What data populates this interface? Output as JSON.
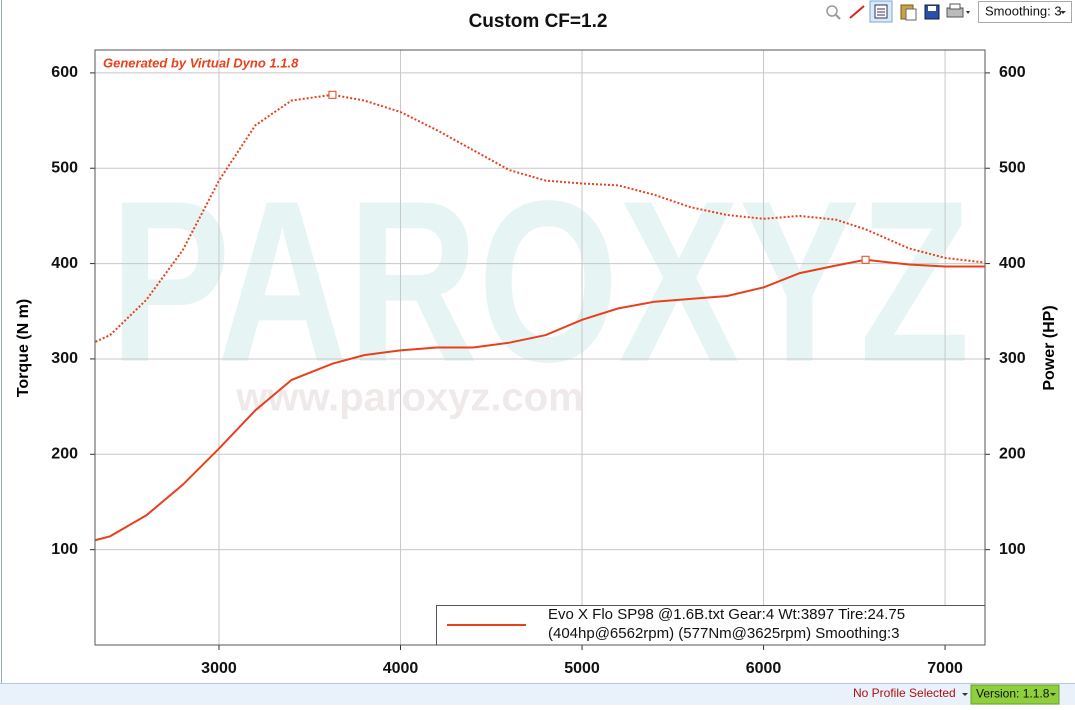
{
  "toolbar": {
    "smoothing": "Smoothing: 3"
  },
  "status_bar": {
    "profile": "No Profile Selected",
    "version": "Version: 1.1.8"
  },
  "chart_data": {
    "type": "line",
    "title": "Custom CF=1.2",
    "watermark": "Generated by Virtual Dyno 1.1.8",
    "background_texts": [
      "PAROXYZ",
      "www.paroxyz.com"
    ],
    "y_label": "Torque (N m)",
    "y2_label": "Power (HP)",
    "x": [
      2320,
      2400,
      2600,
      2800,
      3000,
      3200,
      3400,
      3625,
      3800,
      4000,
      4200,
      4400,
      4600,
      4800,
      5000,
      5200,
      5400,
      5600,
      5800,
      6000,
      6200,
      6400,
      6562,
      6800,
      7000,
      7220
    ],
    "xlim": [
      2317,
      7220
    ],
    "xticks": [
      3000,
      4000,
      5000,
      6000,
      7000
    ],
    "ylim": [
      0,
      624
    ],
    "yticks": [
      100,
      200,
      300,
      400,
      500,
      600
    ],
    "y2lim": [
      0,
      624
    ],
    "y2ticks": [
      100,
      200,
      300,
      400,
      500,
      600
    ],
    "grid": true,
    "series": [
      {
        "color": "#e8401c",
        "style": "dotted",
        "values": [
          318,
          325,
          362,
          414,
          487,
          545,
          571,
          577,
          571,
          559,
          540,
          519,
          498,
          487,
          484,
          482,
          472,
          459,
          451,
          447,
          450,
          446,
          436,
          416,
          406,
          401
        ],
        "markers": [
          {
            "x": 3625,
            "y": 577
          }
        ]
      },
      {
        "color": "#e8401c",
        "style": "solid",
        "axis": "y2",
        "values": [
          110,
          114,
          136,
          168,
          206,
          246,
          278,
          295,
          304,
          309,
          312,
          312,
          317,
          325,
          341,
          353,
          360,
          363,
          366,
          375,
          390,
          398,
          404,
          399,
          397,
          397
        ],
        "markers": [
          {
            "x": 6562,
            "y": 404
          }
        ]
      }
    ],
    "legend": {
      "lines": [
        "Evo X Flo SP98 @1.6B.txt Gear:4 Wt:3897 Tire:24.75",
        "(404hp@6562rpm) (577Nm@3625rpm) Smoothing:3"
      ]
    }
  }
}
